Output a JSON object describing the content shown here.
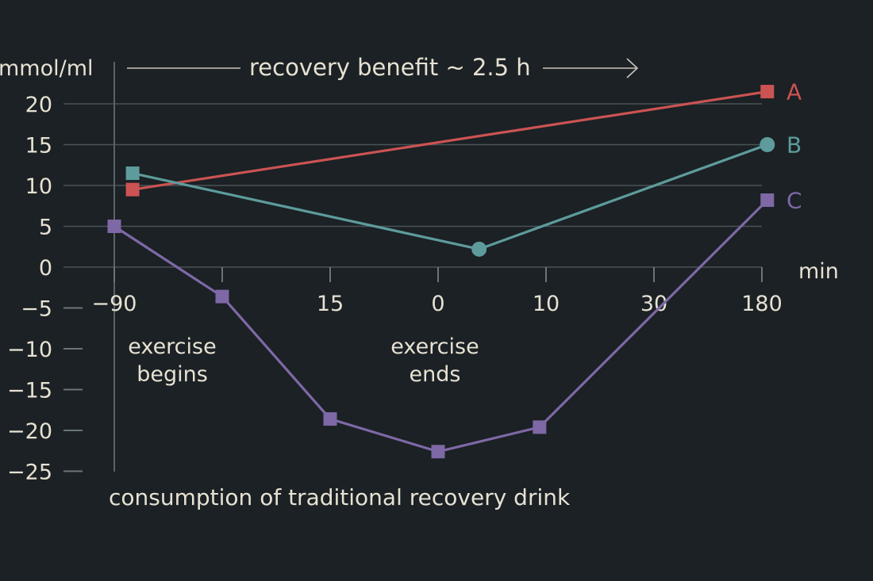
{
  "chart_data": {
    "type": "line",
    "title": "recovery benefit ~ 2.5 h",
    "ylabel": "mmol/ml",
    "xlabel": "min",
    "caption": "consumption of traditional recovery drink",
    "ylim": [
      -25,
      20
    ],
    "yticks": [
      20,
      15,
      10,
      5,
      0,
      -5,
      -10,
      -15,
      -20,
      -25
    ],
    "ytick_labels": [
      "20",
      "15",
      "10",
      "5",
      "0",
      "−5",
      "−10",
      "−15",
      "−20",
      "−25"
    ],
    "categories": [
      "−90",
      "",
      "15",
      "0",
      "10",
      "30",
      "180"
    ],
    "annotations": [
      {
        "lines": [
          "exercise",
          "begins"
        ],
        "at_category": 0
      },
      {
        "lines": [
          "exercise",
          "ends"
        ],
        "at_category": 3
      }
    ],
    "series": [
      {
        "name": "A",
        "color": "#cc5353",
        "marker": "square",
        "points": [
          {
            "x": 0.17,
            "y": 9.5
          },
          {
            "x": 6.05,
            "y": 21.5
          }
        ]
      },
      {
        "name": "B",
        "color": "#5e9b9c",
        "marker": "square-then-circle",
        "points": [
          {
            "x": 0.17,
            "y": 11.5
          },
          {
            "x": 3.38,
            "y": 2.2
          },
          {
            "x": 6.05,
            "y": 15
          }
        ]
      },
      {
        "name": "C",
        "color": "#7e68a6",
        "marker": "square",
        "points": [
          {
            "x": 0,
            "y": 5
          },
          {
            "x": 1,
            "y": -3.6
          },
          {
            "x": 2,
            "y": -18.6
          },
          {
            "x": 3,
            "y": -22.6
          },
          {
            "x": 3.94,
            "y": -19.6
          },
          {
            "x": 6.05,
            "y": 8.2
          }
        ]
      }
    ]
  }
}
